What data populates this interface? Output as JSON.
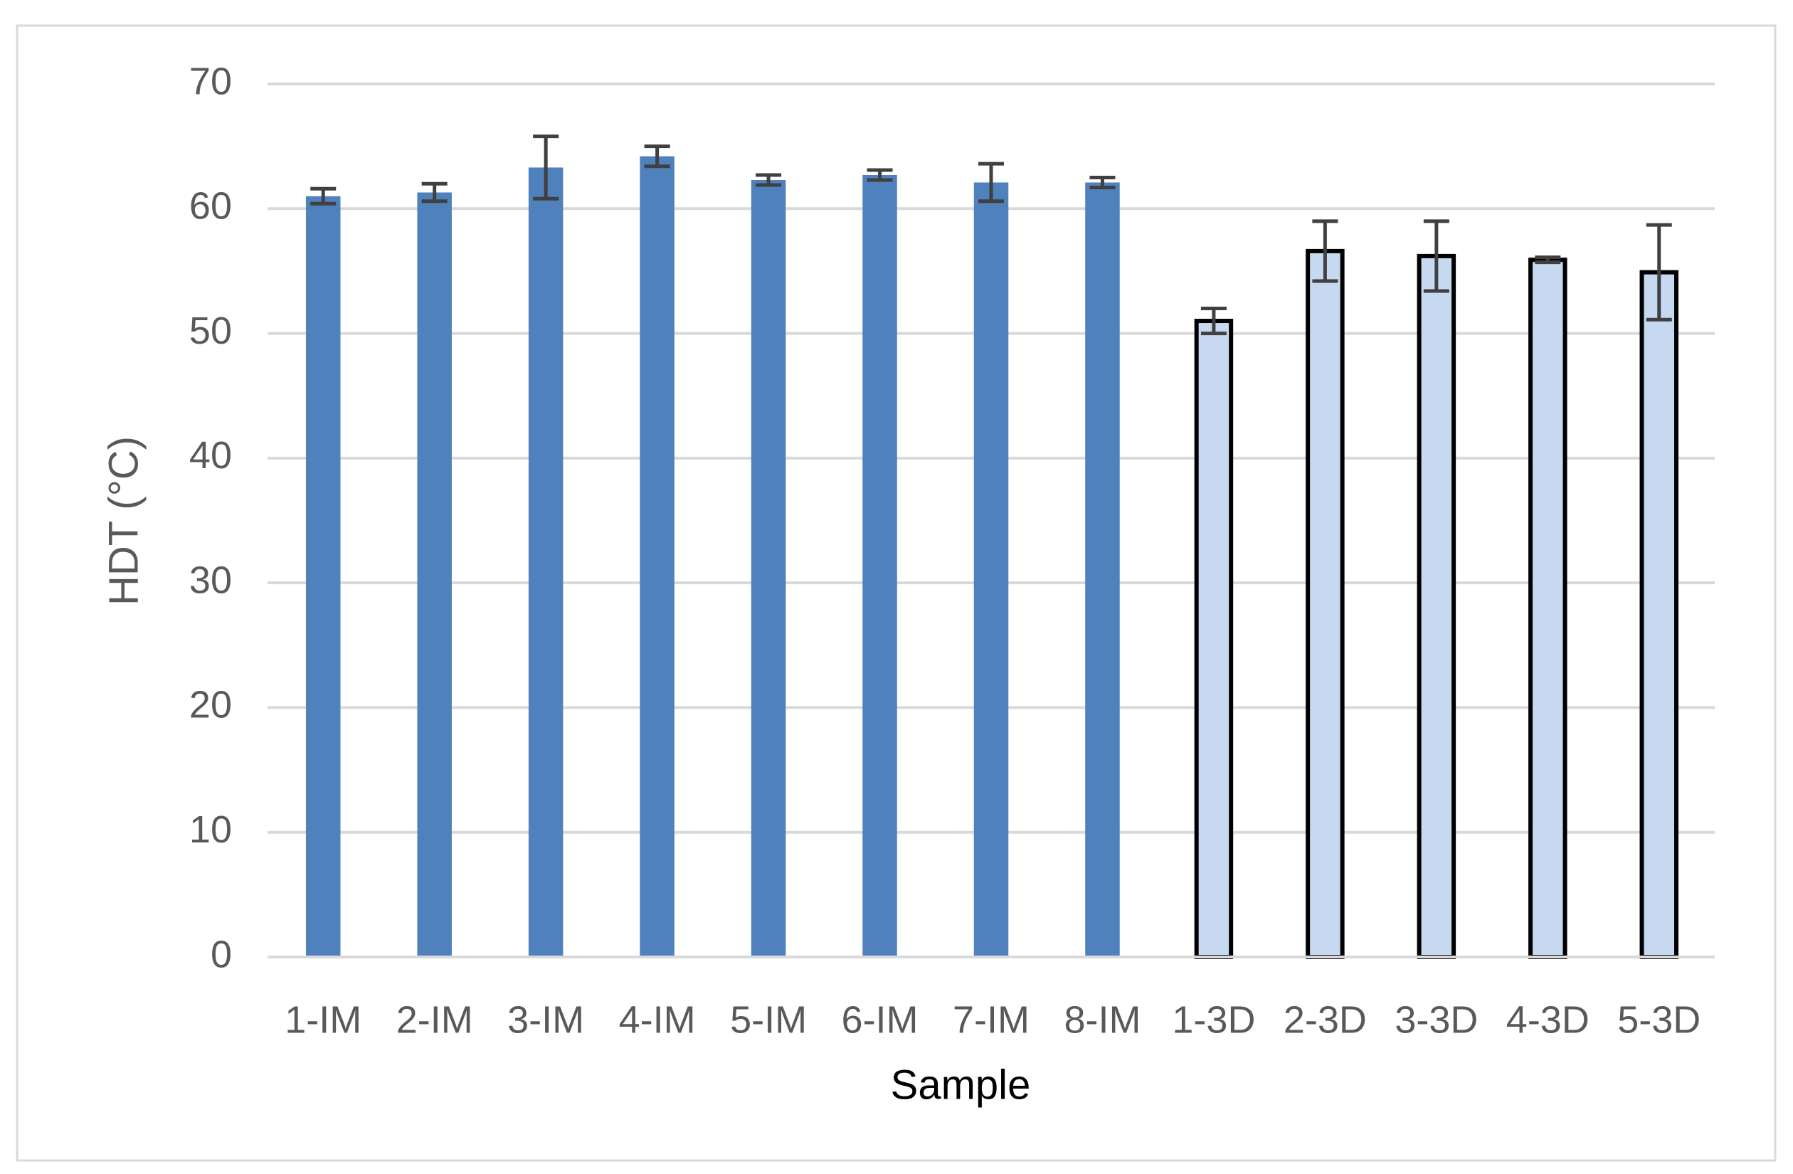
{
  "chart_data": {
    "type": "bar",
    "xlabel": "Sample",
    "ylabel": "HDT (°C)",
    "categories": [
      "1-IM",
      "2-IM",
      "3-IM",
      "4-IM",
      "5-IM",
      "6-IM",
      "7-IM",
      "8-IM",
      "1-3D",
      "2-3D",
      "3-3D",
      "4-3D",
      "5-3D"
    ],
    "values": [
      61.0,
      61.3,
      63.3,
      64.2,
      62.3,
      62.7,
      62.1,
      62.1,
      51.0,
      56.6,
      56.2,
      55.9,
      54.9
    ],
    "errors": [
      0.6,
      0.7,
      2.5,
      0.8,
      0.4,
      0.4,
      1.5,
      0.4,
      1.0,
      2.4,
      2.8,
      0.2,
      3.8
    ],
    "colors": [
      "#4f81bd",
      "#4f81bd",
      "#4f81bd",
      "#4f81bd",
      "#4f81bd",
      "#4f81bd",
      "#4f81bd",
      "#4f81bd",
      "#c6d9f0",
      "#c6d9f0",
      "#c6d9f0",
      "#c6d9f0",
      "#c6d9f0"
    ],
    "edgecolors": [
      null,
      null,
      null,
      null,
      null,
      null,
      null,
      null,
      "#000000",
      "#000000",
      "#000000",
      "#000000",
      "#000000"
    ],
    "ylim": [
      0,
      70
    ],
    "yticks": [
      0,
      10,
      20,
      30,
      40,
      50,
      60,
      70
    ],
    "grid": true
  }
}
